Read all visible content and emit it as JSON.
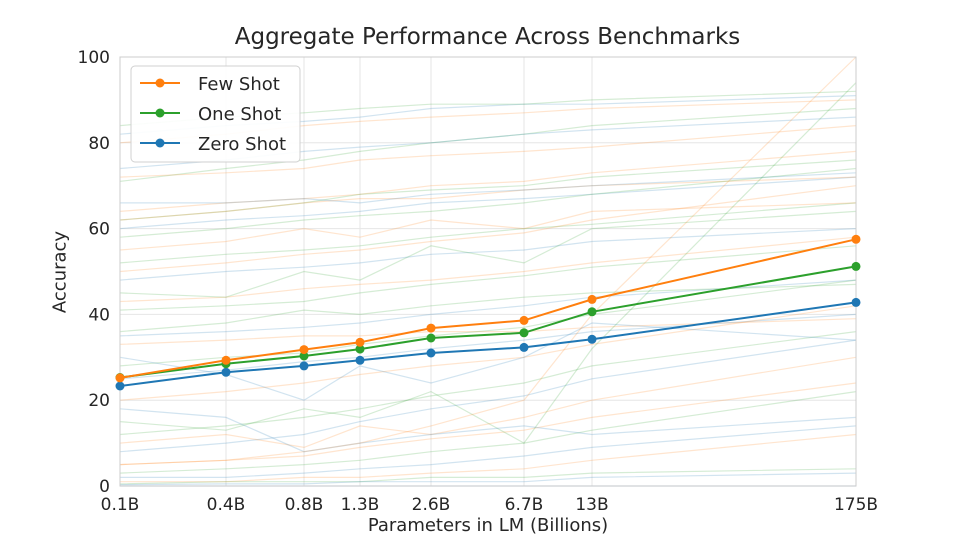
{
  "chart_data": {
    "type": "line",
    "title": "Aggregate Performance Across Benchmarks",
    "xlabel": "Parameters in LM (Billions)",
    "ylabel": "Accuracy",
    "categories": [
      "0.1B",
      "0.4B",
      "0.8B",
      "1.3B",
      "2.6B",
      "6.7B",
      "13B",
      "175B"
    ],
    "x_numeric": [
      0.1,
      0.4,
      0.8,
      1.3,
      2.6,
      6.7,
      13,
      175
    ],
    "x_scale": "log",
    "ylim": [
      0,
      100
    ],
    "yticks": [
      0,
      20,
      40,
      60,
      80,
      100
    ],
    "grid": true,
    "legend_position": "top-left",
    "series": [
      {
        "name": "Few Shot",
        "color": "#ff7f0e",
        "values": [
          25.2,
          29.3,
          31.8,
          33.5,
          36.8,
          38.6,
          43.5,
          57.5
        ]
      },
      {
        "name": "One Shot",
        "color": "#2ca02c",
        "values": [
          25.3,
          28.5,
          30.3,
          31.9,
          34.5,
          35.7,
          40.6,
          51.2
        ]
      },
      {
        "name": "Zero Shot",
        "color": "#1f77b4",
        "values": [
          23.3,
          26.5,
          28.0,
          29.3,
          31.0,
          32.3,
          34.2,
          42.8
        ]
      }
    ],
    "background_series_note": "",
    "background_series": [
      {
        "color": "#ff7f0e",
        "values": [
          64,
          66,
          67,
          68,
          70,
          71,
          73,
          78
        ]
      },
      {
        "color": "#2ca02c",
        "values": [
          62,
          64,
          66,
          68,
          69,
          70,
          72,
          76
        ]
      },
      {
        "color": "#1f77b4",
        "values": [
          60,
          62,
          63,
          64,
          66,
          67,
          68,
          72
        ]
      },
      {
        "color": "#2ca02c",
        "values": [
          71,
          74,
          76,
          78,
          80,
          82,
          84,
          88
        ]
      },
      {
        "color": "#ff7f0e",
        "values": [
          80,
          82,
          84,
          85,
          86,
          87,
          88,
          90
        ]
      },
      {
        "color": "#1f77b4",
        "values": [
          82,
          84,
          85,
          86,
          88,
          89,
          89,
          91
        ]
      },
      {
        "color": "#2ca02c",
        "values": [
          52,
          54,
          55,
          56,
          58,
          60,
          61,
          66
        ]
      },
      {
        "color": "#ff7f0e",
        "values": [
          50,
          52,
          54,
          55,
          57,
          59,
          62,
          70
        ]
      },
      {
        "color": "#1f77b4",
        "values": [
          48,
          50,
          51,
          52,
          54,
          55,
          57,
          60
        ]
      },
      {
        "color": "#ff7f0e",
        "values": [
          43,
          44,
          46,
          47,
          48,
          50,
          52,
          58
        ]
      },
      {
        "color": "#2ca02c",
        "values": [
          41,
          42,
          43,
          45,
          47,
          49,
          51,
          56
        ]
      },
      {
        "color": "#1f77b4",
        "values": [
          35,
          36,
          37,
          38,
          40,
          42,
          44,
          48
        ]
      },
      {
        "color": "#ff7f0e",
        "values": [
          33,
          34,
          35,
          35,
          36,
          36,
          37,
          39
        ]
      },
      {
        "color": "#2ca02c",
        "values": [
          28,
          30,
          31,
          33,
          35,
          37,
          40,
          48
        ]
      },
      {
        "color": "#1f77b4",
        "values": [
          25,
          27,
          29,
          30,
          32,
          34,
          36,
          40
        ]
      },
      {
        "color": "#ff7f0e",
        "values": [
          20,
          22,
          24,
          26,
          28,
          30,
          33,
          42
        ]
      },
      {
        "color": "#2ca02c",
        "values": [
          12,
          14,
          16,
          18,
          21,
          24,
          28,
          36
        ]
      },
      {
        "color": "#1f77b4",
        "values": [
          8,
          10,
          12,
          15,
          18,
          21,
          25,
          34
        ]
      },
      {
        "color": "#ff7f0e",
        "values": [
          5,
          6,
          7,
          9,
          11,
          13,
          16,
          24
        ]
      },
      {
        "color": "#2ca02c",
        "values": [
          3,
          4,
          5,
          6,
          8,
          10,
          13,
          22
        ]
      },
      {
        "color": "#1f77b4",
        "values": [
          2,
          2,
          3,
          4,
          5,
          7,
          9,
          14
        ]
      },
      {
        "color": "#ff7f0e",
        "values": [
          1,
          1,
          2,
          2,
          3,
          4,
          6,
          12
        ]
      },
      {
        "color": "#2ca02c",
        "values": [
          0.5,
          1,
          1,
          1,
          2,
          2,
          3,
          4
        ]
      },
      {
        "color": "#1f77b4",
        "values": [
          0.3,
          0.5,
          0.5,
          1,
          1,
          1,
          2,
          3
        ]
      },
      {
        "color": "#ff7f0e",
        "values": [
          55,
          57,
          60,
          58,
          62,
          60,
          64,
          66
        ]
      },
      {
        "color": "#2ca02c",
        "values": [
          45,
          44,
          50,
          48,
          56,
          52,
          60,
          64
        ]
      },
      {
        "color": "#1f77b4",
        "values": [
          30,
          26,
          20,
          28,
          24,
          30,
          38,
          34
        ]
      },
      {
        "color": "#2ca02c",
        "values": [
          15,
          13,
          18,
          16,
          22,
          10,
          32,
          94
        ]
      },
      {
        "color": "#ff7f0e",
        "values": [
          10,
          12,
          9,
          14,
          12,
          16,
          20,
          30
        ]
      },
      {
        "color": "#1f77b4",
        "values": [
          18,
          16,
          8,
          10,
          12,
          14,
          12,
          16
        ]
      },
      {
        "color": "#2ca02c",
        "values": [
          36,
          38,
          41,
          40,
          42,
          44,
          45,
          47
        ]
      },
      {
        "color": "#ff7f0e",
        "values": [
          62,
          64,
          66,
          67,
          67,
          69,
          70,
          72
        ]
      },
      {
        "color": "#1f77b4",
        "values": [
          66,
          66,
          67,
          66,
          68,
          69,
          70,
          73
        ]
      },
      {
        "color": "#2ca02c",
        "values": [
          58,
          60,
          62,
          63,
          64,
          66,
          68,
          74
        ]
      },
      {
        "color": "#ff7f0e",
        "values": [
          72,
          73,
          74,
          76,
          77,
          78,
          79,
          84
        ]
      },
      {
        "color": "#1f77b4",
        "values": [
          74,
          76,
          78,
          79,
          80,
          82,
          83,
          86
        ]
      },
      {
        "color": "#2ca02c",
        "values": [
          84,
          86,
          87,
          88,
          89,
          89,
          90,
          92
        ]
      },
      {
        "color": "#ff7f0e",
        "values": [
          5,
          6,
          8,
          10,
          14,
          20,
          40,
          100
        ]
      },
      {
        "color": "#1f77b4",
        "values": [
          0,
          0,
          0,
          0,
          0,
          0,
          0,
          0
        ]
      }
    ]
  }
}
